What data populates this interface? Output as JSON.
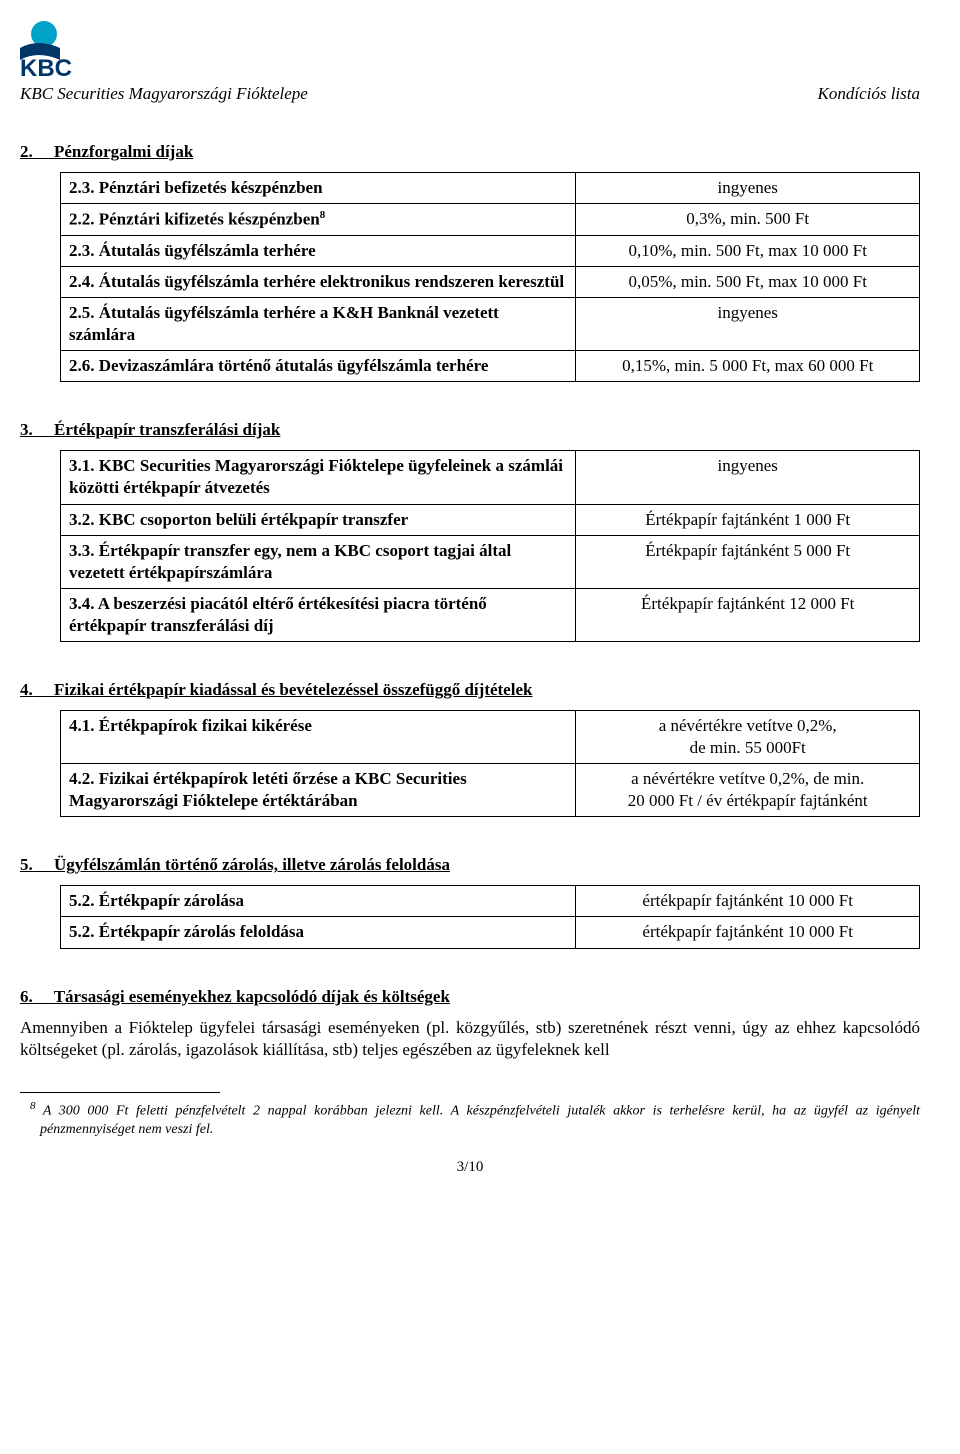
{
  "header": {
    "company": "KBC Securities Magyarországi Fióktelepe",
    "doc_title": "Kondíciós lista"
  },
  "logo": {
    "name": "KBC",
    "primary_color": "#003768",
    "accent_color": "#00a2c7"
  },
  "section2": {
    "heading_num": "2.",
    "heading_text": "Pénzforgalmi díjak",
    "rows": [
      {
        "label": "2.3. Pénztári befizetés készpénzben",
        "value": "ingyenes"
      },
      {
        "label": "2.2. Pénztári kifizetés készpénzben",
        "sup": "8",
        "value": "0,3%, min. 500 Ft"
      },
      {
        "label": "2.3. Átutalás ügyfélszámla terhére",
        "value": "0,10%, min. 500 Ft, max 10 000 Ft"
      },
      {
        "label": "2.4. Átutalás ügyfélszámla terhére elektronikus rendszeren keresztül",
        "value": "0,05%, min. 500 Ft, max 10 000 Ft"
      },
      {
        "label": "2.5. Átutalás ügyfélszámla terhére a K&H Banknál vezetett számlára",
        "value": "ingyenes"
      },
      {
        "label": "2.6. Devizaszámlára történő átutalás ügyfélszámla terhére",
        "value": "0,15%, min. 5 000 Ft, max 60 000 Ft"
      }
    ]
  },
  "section3": {
    "heading_num": "3.",
    "heading_text": "Értékpapír transzferálási díjak",
    "rows": [
      {
        "label": "3.1. KBC Securities Magyarországi Fióktelepe ügyfeleinek a számlái közötti értékpapír átvezetés",
        "value": "ingyenes"
      },
      {
        "label": "3.2. KBC csoporton belüli értékpapír transzfer",
        "value": "Értékpapír fajtánként 1 000 Ft"
      },
      {
        "label": "3.3. Értékpapír transzfer egy, nem a KBC csoport tagjai által vezetett értékpapírszámlára",
        "value": "Értékpapír fajtánként 5 000 Ft"
      },
      {
        "label": "3.4. A beszerzési piacától eltérő értékesítési piacra történő értékpapír transzferálási díj",
        "value": "Értékpapír fajtánként 12 000 Ft"
      }
    ]
  },
  "section4": {
    "heading_num": "4.",
    "heading_text": "Fizikai értékpapír kiadással és bevételezéssel összefüggő díjtételek",
    "rows": [
      {
        "label": "4.1. Értékpapírok fizikai kikérése",
        "value": "a névértékre vetítve 0,2%,\nde min. 55 000Ft"
      },
      {
        "label": "4.2. Fizikai értékpapírok letéti őrzése a KBC Securities Magyarországi Fióktelepe értéktárában",
        "value": "a névértékre vetítve 0,2%, de min.\n20 000 Ft / év értékpapír fajtánként"
      }
    ]
  },
  "section5": {
    "heading_num": "5.",
    "heading_text": "Ügyfélszámlán történő zárolás, illetve zárolás feloldása",
    "rows": [
      {
        "label": "5.2. Értékpapír zárolása",
        "value": "értékpapír fajtánként 10 000 Ft"
      },
      {
        "label": "5.2. Értékpapír zárolás feloldása",
        "value": "értékpapír fajtánként 10 000 Ft"
      }
    ]
  },
  "section6": {
    "heading_num": "6.",
    "heading_text": "Társasági eseményekhez kapcsolódó díjak és költségek",
    "body": "Amennyiben a Fióktelep ügyfelei társasági eseményeken (pl. közgyűlés, stb) szeretnének részt venni, úgy az ehhez kapcsolódó költségeket (pl. zárolás, igazolások kiállítása, stb) teljes egészében az ügyfeleknek kell"
  },
  "footnote": {
    "marker": "8",
    "text": "A 300 000 Ft feletti pénzfelvételt 2 nappal korábban jelezni kell. A készpénzfelvételi jutalék akkor is terhelésre kerül, ha az ügyfél az igényelt pénzmennyiséget nem veszi fel."
  },
  "page_num": "3/10"
}
